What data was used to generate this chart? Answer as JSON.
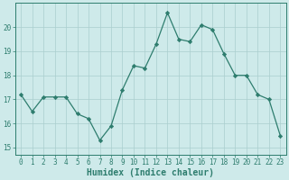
{
  "x": [
    0,
    1,
    2,
    3,
    4,
    5,
    6,
    7,
    8,
    9,
    10,
    11,
    12,
    13,
    14,
    15,
    16,
    17,
    18,
    19,
    20,
    21,
    22,
    23
  ],
  "y": [
    17.2,
    16.5,
    17.1,
    17.1,
    17.1,
    16.4,
    16.2,
    15.3,
    15.9,
    17.4,
    18.4,
    18.3,
    19.3,
    20.6,
    19.5,
    19.4,
    20.1,
    19.9,
    18.9,
    18.0,
    18.0,
    17.2,
    17.0,
    15.5
  ],
  "x_ticks": [
    0,
    1,
    2,
    3,
    4,
    5,
    6,
    7,
    8,
    9,
    10,
    11,
    12,
    13,
    14,
    15,
    16,
    17,
    18,
    19,
    20,
    21,
    22,
    23
  ],
  "x_tick_labels": [
    "0",
    "1",
    "2",
    "3",
    "4",
    "5",
    "6",
    "7",
    "8",
    "9",
    "10",
    "11",
    "12",
    "13",
    "14",
    "15",
    "16",
    "17",
    "18",
    "19",
    "20",
    "21",
    "22",
    "23"
  ],
  "y_ticks": [
    15,
    16,
    17,
    18,
    19,
    20
  ],
  "ylim": [
    14.7,
    21.0
  ],
  "xlim": [
    -0.5,
    23.5
  ],
  "xlabel": "Humidex (Indice chaleur)",
  "line_color": "#2e7d6e",
  "marker": "D",
  "marker_size": 2.2,
  "bg_color": "#ceeaea",
  "grid_color": "#aacece",
  "axis_color": "#2e7d6e",
  "tick_fontsize": 5.5,
  "xlabel_fontsize": 7.0
}
